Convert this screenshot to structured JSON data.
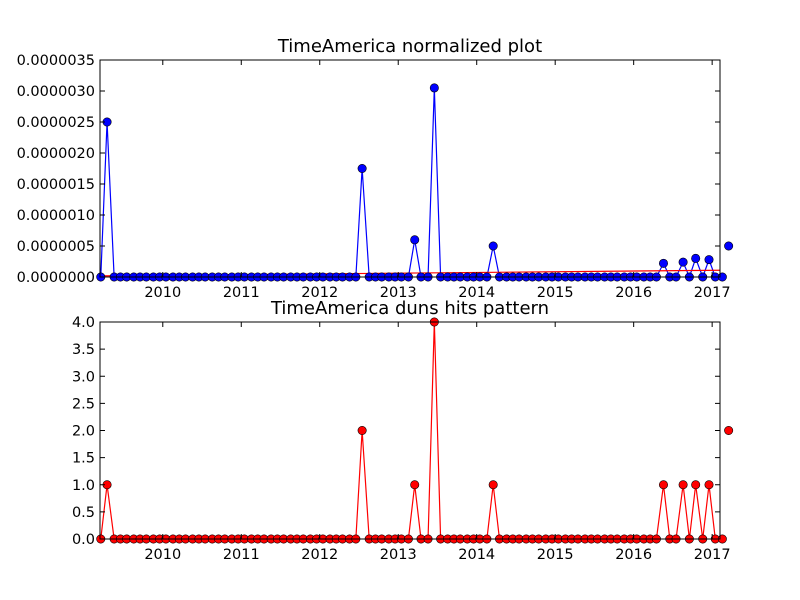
{
  "chart_data": [
    {
      "type": "line",
      "title": "TimeAmerica normalized plot",
      "xlabel": "",
      "ylabel": "",
      "x_tick_labels": [
        "2010",
        "2011",
        "2012",
        "2013",
        "2014",
        "2015",
        "2016",
        "2017"
      ],
      "y_tick_labels": [
        "0.0000000",
        "0.0000005",
        "0.0000010",
        "0.0000015",
        "0.0000020",
        "0.0000025",
        "0.0000030",
        "0.0000035"
      ],
      "xlim": [
        2009.2,
        2017.1
      ],
      "ylim": [
        0,
        3.5e-06
      ],
      "grid": false,
      "series": [
        {
          "color": "#0000ff",
          "marker": "circle",
          "points": [
            [
              2009.21,
              0
            ],
            [
              2009.29,
              2.5e-06
            ],
            [
              2009.38,
              0
            ],
            [
              2009.46,
              0
            ],
            [
              2009.54,
              0
            ],
            [
              2009.63,
              0
            ],
            [
              2009.71,
              0
            ],
            [
              2009.79,
              0
            ],
            [
              2009.88,
              0
            ],
            [
              2009.96,
              0
            ],
            [
              2010.04,
              0
            ],
            [
              2010.13,
              0
            ],
            [
              2010.21,
              0
            ],
            [
              2010.29,
              0
            ],
            [
              2010.38,
              0
            ],
            [
              2010.46,
              0
            ],
            [
              2010.54,
              0
            ],
            [
              2010.63,
              0
            ],
            [
              2010.71,
              0
            ],
            [
              2010.79,
              0
            ],
            [
              2010.88,
              0
            ],
            [
              2010.96,
              0
            ],
            [
              2011.04,
              0
            ],
            [
              2011.13,
              0
            ],
            [
              2011.21,
              0
            ],
            [
              2011.29,
              0
            ],
            [
              2011.38,
              0
            ],
            [
              2011.46,
              0
            ],
            [
              2011.54,
              0
            ],
            [
              2011.63,
              0
            ],
            [
              2011.71,
              0
            ],
            [
              2011.79,
              0
            ],
            [
              2011.88,
              0
            ],
            [
              2011.96,
              0
            ],
            [
              2012.04,
              0
            ],
            [
              2012.13,
              0
            ],
            [
              2012.21,
              0
            ],
            [
              2012.29,
              0
            ],
            [
              2012.38,
              0
            ],
            [
              2012.46,
              0
            ],
            [
              2012.54,
              1.75e-06
            ],
            [
              2012.63,
              0
            ],
            [
              2012.71,
              0
            ],
            [
              2012.79,
              0
            ],
            [
              2012.88,
              0
            ],
            [
              2012.96,
              0
            ],
            [
              2013.04,
              0
            ],
            [
              2013.13,
              0
            ],
            [
              2013.21,
              6e-07
            ],
            [
              2013.29,
              0
            ],
            [
              2013.38,
              0
            ],
            [
              2013.46,
              3.05e-06
            ],
            [
              2013.54,
              0
            ],
            [
              2013.63,
              0
            ],
            [
              2013.71,
              0
            ],
            [
              2013.79,
              0
            ],
            [
              2013.88,
              0
            ],
            [
              2013.96,
              0
            ],
            [
              2014.04,
              0
            ],
            [
              2014.13,
              0
            ],
            [
              2014.21,
              5e-07
            ],
            [
              2014.29,
              0
            ],
            [
              2014.38,
              0
            ],
            [
              2014.46,
              0
            ],
            [
              2014.54,
              0
            ],
            [
              2014.63,
              0
            ],
            [
              2014.71,
              0
            ],
            [
              2014.79,
              0
            ],
            [
              2014.88,
              0
            ],
            [
              2014.96,
              0
            ],
            [
              2015.04,
              0
            ],
            [
              2015.13,
              0
            ],
            [
              2015.21,
              0
            ],
            [
              2015.29,
              0
            ],
            [
              2015.38,
              0
            ],
            [
              2015.46,
              0
            ],
            [
              2015.54,
              0
            ],
            [
              2015.63,
              0
            ],
            [
              2015.71,
              0
            ],
            [
              2015.79,
              0
            ],
            [
              2015.88,
              0
            ],
            [
              2015.96,
              0
            ],
            [
              2016.04,
              0
            ],
            [
              2016.13,
              0
            ],
            [
              2016.21,
              0
            ],
            [
              2016.29,
              0
            ],
            [
              2016.38,
              2.2e-07
            ],
            [
              2016.46,
              0
            ],
            [
              2016.54,
              0
            ],
            [
              2016.63,
              2.4e-07
            ],
            [
              2016.71,
              0
            ],
            [
              2016.79,
              3e-07
            ],
            [
              2016.88,
              0
            ],
            [
              2016.96,
              2.8e-07
            ],
            [
              2017.04,
              0
            ],
            [
              2017.13,
              0
            ],
            [
              2017.21,
              5e-07
            ]
          ]
        },
        {
          "color": "#ff0000",
          "marker": "none",
          "points": [
            [
              2009.21,
              1.8e-08
            ],
            [
              2017.21,
              1.1e-07
            ]
          ]
        }
      ]
    },
    {
      "type": "line",
      "title": "TimeAmerica duns hits pattern",
      "xlabel": "",
      "ylabel": "",
      "x_tick_labels": [
        "2010",
        "2011",
        "2012",
        "2013",
        "2014",
        "2015",
        "2016",
        "2017"
      ],
      "y_tick_labels": [
        "0.0",
        "0.5",
        "1.0",
        "1.5",
        "2.0",
        "2.5",
        "3.0",
        "3.5",
        "4.0"
      ],
      "xlim": [
        2009.2,
        2017.1
      ],
      "ylim": [
        0,
        4
      ],
      "grid": false,
      "series": [
        {
          "color": "#ff0000",
          "marker": "circle",
          "points": [
            [
              2009.21,
              0
            ],
            [
              2009.29,
              1
            ],
            [
              2009.38,
              0
            ],
            [
              2009.46,
              0
            ],
            [
              2009.54,
              0
            ],
            [
              2009.63,
              0
            ],
            [
              2009.71,
              0
            ],
            [
              2009.79,
              0
            ],
            [
              2009.88,
              0
            ],
            [
              2009.96,
              0
            ],
            [
              2010.04,
              0
            ],
            [
              2010.13,
              0
            ],
            [
              2010.21,
              0
            ],
            [
              2010.29,
              0
            ],
            [
              2010.38,
              0
            ],
            [
              2010.46,
              0
            ],
            [
              2010.54,
              0
            ],
            [
              2010.63,
              0
            ],
            [
              2010.71,
              0
            ],
            [
              2010.79,
              0
            ],
            [
              2010.88,
              0
            ],
            [
              2010.96,
              0
            ],
            [
              2011.04,
              0
            ],
            [
              2011.13,
              0
            ],
            [
              2011.21,
              0
            ],
            [
              2011.29,
              0
            ],
            [
              2011.38,
              0
            ],
            [
              2011.46,
              0
            ],
            [
              2011.54,
              0
            ],
            [
              2011.63,
              0
            ],
            [
              2011.71,
              0
            ],
            [
              2011.79,
              0
            ],
            [
              2011.88,
              0
            ],
            [
              2011.96,
              0
            ],
            [
              2012.04,
              0
            ],
            [
              2012.13,
              0
            ],
            [
              2012.21,
              0
            ],
            [
              2012.29,
              0
            ],
            [
              2012.38,
              0
            ],
            [
              2012.46,
              0
            ],
            [
              2012.54,
              2
            ],
            [
              2012.63,
              0
            ],
            [
              2012.71,
              0
            ],
            [
              2012.79,
              0
            ],
            [
              2012.88,
              0
            ],
            [
              2012.96,
              0
            ],
            [
              2013.04,
              0
            ],
            [
              2013.13,
              0
            ],
            [
              2013.21,
              1
            ],
            [
              2013.29,
              0
            ],
            [
              2013.38,
              0
            ],
            [
              2013.46,
              4
            ],
            [
              2013.54,
              0
            ],
            [
              2013.63,
              0
            ],
            [
              2013.71,
              0
            ],
            [
              2013.79,
              0
            ],
            [
              2013.88,
              0
            ],
            [
              2013.96,
              0
            ],
            [
              2014.04,
              0
            ],
            [
              2014.13,
              0
            ],
            [
              2014.21,
              1
            ],
            [
              2014.29,
              0
            ],
            [
              2014.38,
              0
            ],
            [
              2014.46,
              0
            ],
            [
              2014.54,
              0
            ],
            [
              2014.63,
              0
            ],
            [
              2014.71,
              0
            ],
            [
              2014.79,
              0
            ],
            [
              2014.88,
              0
            ],
            [
              2014.96,
              0
            ],
            [
              2015.04,
              0
            ],
            [
              2015.13,
              0
            ],
            [
              2015.21,
              0
            ],
            [
              2015.29,
              0
            ],
            [
              2015.38,
              0
            ],
            [
              2015.46,
              0
            ],
            [
              2015.54,
              0
            ],
            [
              2015.63,
              0
            ],
            [
              2015.71,
              0
            ],
            [
              2015.79,
              0
            ],
            [
              2015.88,
              0
            ],
            [
              2015.96,
              0
            ],
            [
              2016.04,
              0
            ],
            [
              2016.13,
              0
            ],
            [
              2016.21,
              0
            ],
            [
              2016.29,
              0
            ],
            [
              2016.38,
              1
            ],
            [
              2016.46,
              0
            ],
            [
              2016.54,
              0
            ],
            [
              2016.63,
              1
            ],
            [
              2016.71,
              0
            ],
            [
              2016.79,
              1
            ],
            [
              2016.88,
              0
            ],
            [
              2016.96,
              1
            ],
            [
              2017.04,
              0
            ],
            [
              2017.13,
              0
            ],
            [
              2017.21,
              2
            ]
          ]
        }
      ]
    }
  ]
}
